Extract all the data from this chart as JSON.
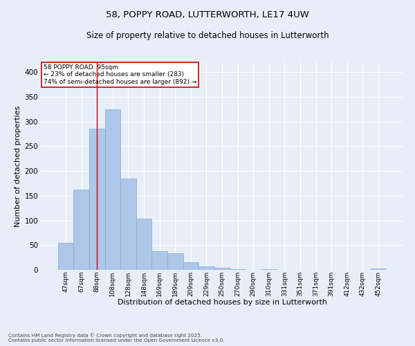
{
  "title1": "58, POPPY ROAD, LUTTERWORTH, LE17 4UW",
  "title2": "Size of property relative to detached houses in Lutterworth",
  "xlabel": "Distribution of detached houses by size in Lutterworth",
  "ylabel": "Number of detached properties",
  "categories": [
    "47sqm",
    "67sqm",
    "88sqm",
    "108sqm",
    "128sqm",
    "148sqm",
    "169sqm",
    "189sqm",
    "209sqm",
    "229sqm",
    "250sqm",
    "270sqm",
    "290sqm",
    "310sqm",
    "331sqm",
    "351sqm",
    "371sqm",
    "391sqm",
    "412sqm",
    "432sqm",
    "452sqm"
  ],
  "values": [
    55,
    162,
    285,
    325,
    185,
    103,
    38,
    33,
    15,
    7,
    4,
    2,
    0,
    2,
    0,
    0,
    0,
    0,
    0,
    0,
    3
  ],
  "bar_color": "#aec6e8",
  "bar_edge_color": "#7aaed0",
  "marker_label_line1": "58 POPPY ROAD: 95sqm",
  "marker_label_line2": "← 23% of detached houses are smaller (283)",
  "marker_label_line3": "74% of semi-detached houses are larger (892) →",
  "vline_color": "#cc0000",
  "annotation_box_edge_color": "#cc0000",
  "background_color": "#e8eef8",
  "grid_color": "#ffffff",
  "footer1": "Contains HM Land Registry data © Crown copyright and database right 2025.",
  "footer2": "Contains public sector information licensed under the Open Government Licence v3.0.",
  "ylim": [
    0,
    420
  ],
  "yticks": [
    0,
    50,
    100,
    150,
    200,
    250,
    300,
    350,
    400
  ],
  "vline_x": 2,
  "figsize": [
    6.0,
    5.0
  ],
  "dpi": 100
}
